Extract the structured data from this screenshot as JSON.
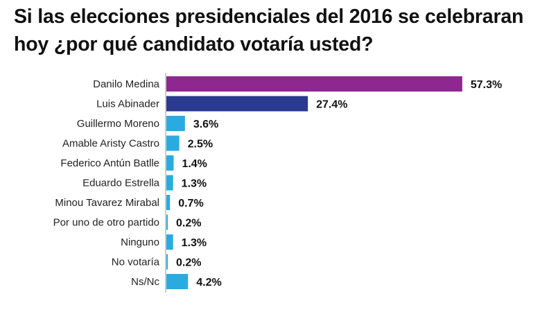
{
  "chart_data": {
    "type": "bar",
    "orientation": "horizontal",
    "title": "Si las elecciones presidenciales del 2016 se celebraran hoy ¿por qué candidato votaría usted?",
    "categories": [
      "Danilo Medina",
      "Luis Abinader",
      "Guillermo Moreno",
      "Amable Aristy Castro",
      "Federico Antún Batlle",
      "Eduardo Estrella",
      "Minou Tavarez Mirabal",
      "Por uno de otro partido",
      "Ninguno",
      "No votaría",
      "Ns/Nc"
    ],
    "values": [
      57.3,
      27.4,
      3.6,
      2.5,
      1.4,
      1.3,
      0.7,
      0.2,
      1.3,
      0.2,
      4.2
    ],
    "value_labels": [
      "57.3%",
      "27.4%",
      "3.6%",
      "2.5%",
      "1.4%",
      "1.3%",
      "0.7%",
      "0.2%",
      "1.3%",
      "0.2%",
      "4.2%"
    ],
    "colors": [
      "#8e278f",
      "#2b3990",
      "#29abe2",
      "#29abe2",
      "#29abe2",
      "#29abe2",
      "#29abe2",
      "#29abe2",
      "#29abe2",
      "#29abe2",
      "#29abe2"
    ],
    "xlabel": "",
    "ylabel": "",
    "xlim": [
      0,
      60
    ],
    "grid": false,
    "legend": "none"
  }
}
